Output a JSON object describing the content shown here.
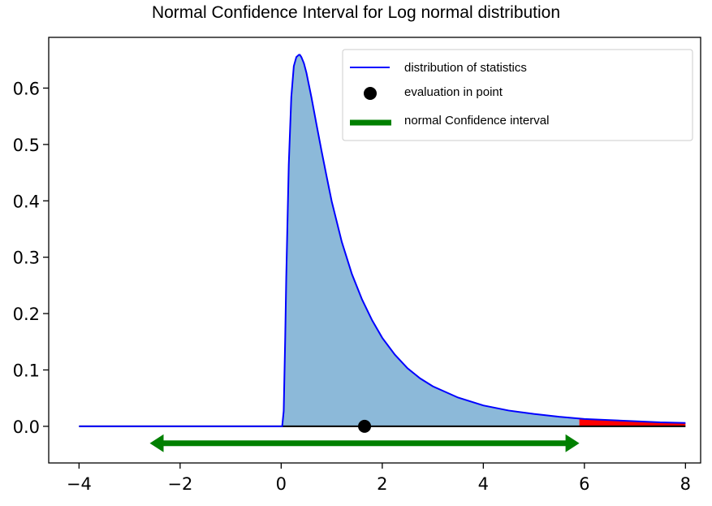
{
  "chart_data": {
    "type": "area",
    "title": "Normal Confidence Interval for Log normal distribution",
    "xlabel": "",
    "ylabel": "",
    "xlim": [
      -4.6,
      8.3
    ],
    "ylim": [
      -0.065,
      0.69
    ],
    "xticks": [
      -4,
      -2,
      0,
      2,
      4,
      6,
      8
    ],
    "xtick_labels": [
      "−4",
      "−2",
      "0",
      "2",
      "4",
      "6",
      "8"
    ],
    "yticks": [
      0.0,
      0.1,
      0.2,
      0.3,
      0.4,
      0.5,
      0.6
    ],
    "ytick_labels": [
      "0.0",
      "0.1",
      "0.2",
      "0.3",
      "0.4",
      "0.5",
      "0.6"
    ],
    "grid": false,
    "legend_position": "top-right",
    "series": [
      {
        "name": "distribution of statistics",
        "kind": "line",
        "color": "#0000ff",
        "x": [
          -4,
          0,
          0.02,
          0.05,
          0.08,
          0.1,
          0.15,
          0.2,
          0.25,
          0.3,
          0.35,
          0.37,
          0.4,
          0.45,
          0.5,
          0.6,
          0.7,
          0.8,
          0.9,
          1.0,
          1.2,
          1.4,
          1.6,
          1.8,
          2.0,
          2.25,
          2.5,
          2.75,
          3.0,
          3.5,
          4.0,
          4.5,
          5.0,
          5.5,
          6.0,
          6.5,
          7.0,
          7.5,
          8.0
        ],
        "y": [
          0,
          0,
          0.0,
          0.027,
          0.158,
          0.263,
          0.464,
          0.584,
          0.639,
          0.655,
          0.659,
          0.659,
          0.655,
          0.644,
          0.627,
          0.583,
          0.535,
          0.488,
          0.443,
          0.399,
          0.327,
          0.27,
          0.225,
          0.188,
          0.157,
          0.127,
          0.103,
          0.085,
          0.071,
          0.051,
          0.037,
          0.028,
          0.022,
          0.017,
          0.013,
          0.011,
          0.009,
          0.007,
          0.006
        ]
      },
      {
        "name": "evaluation in point",
        "kind": "point",
        "color": "#000000",
        "x": [
          1.65
        ],
        "y": [
          0.0
        ]
      },
      {
        "name": "normal Confidence interval",
        "kind": "double-arrow",
        "color": "#008000",
        "x": [
          -2.6,
          5.9
        ],
        "y": [
          -0.03,
          -0.03
        ]
      }
    ],
    "shaded_regions": [
      {
        "color": "#8cb9d9",
        "x_from": 0.0,
        "x_to": 5.9
      },
      {
        "color": "#ff0000",
        "x_from": 5.9,
        "x_to": 8.0
      }
    ],
    "baseline": {
      "color": "#000000",
      "x_from": -4,
      "x_to": 8,
      "y": 0
    }
  }
}
